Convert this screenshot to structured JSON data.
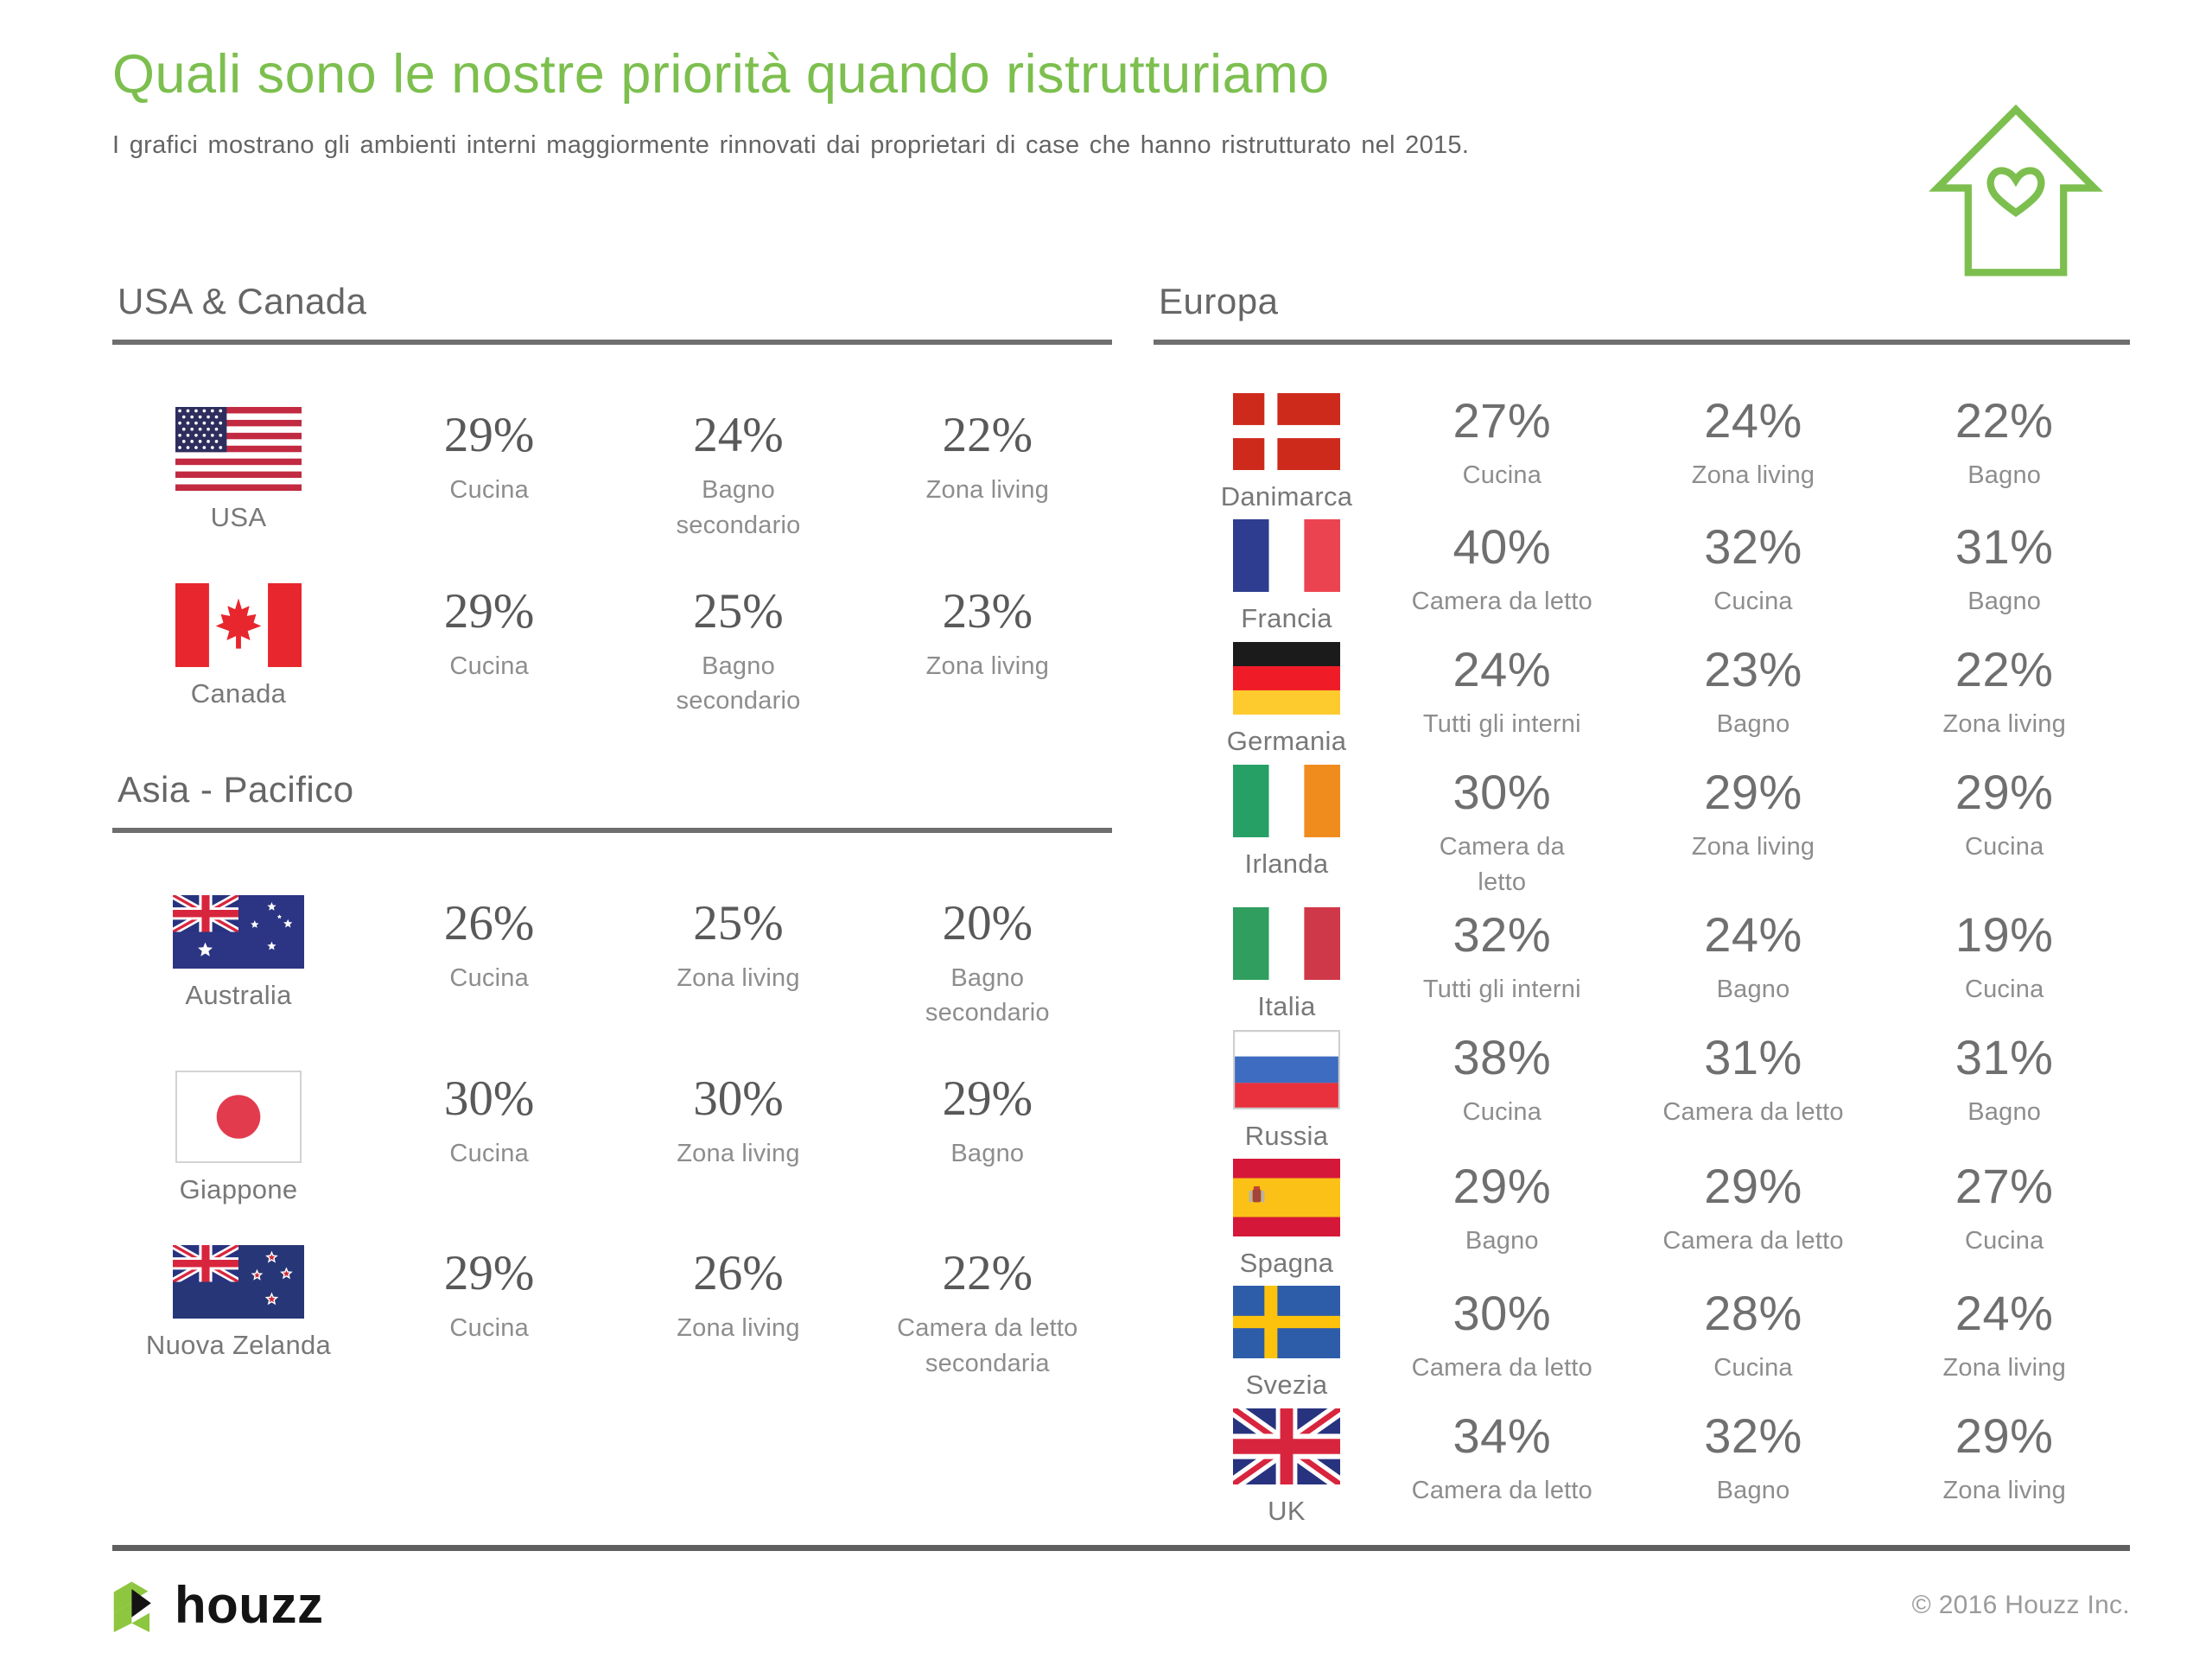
{
  "header": {
    "title": "Quali sono le nostre priorità quando ristrutturiamo",
    "subtitle": "I grafici mostrano gli ambienti interni maggiormente rinnovati dai proprietari di case che hanno ristrutturato nel 2015."
  },
  "colors": {
    "accent_green": "#7cbf4e",
    "divider_gray": "#6e6e6e",
    "percent_serif_gray": "#595959",
    "percent_sans_gray": "#6f6f6f",
    "label_gray": "#8d8d8d"
  },
  "icons": {
    "header_icon": "house-heart-icon",
    "footer_icon": "houzz-logo-icon"
  },
  "sections": {
    "usa_canada": {
      "title": "USA & Canada",
      "rows": [
        {
          "country": "USA",
          "flag": "usa",
          "stats": [
            {
              "value": "29%",
              "label": "Cucina"
            },
            {
              "value": "24%",
              "label": "Bagno\nsecondario"
            },
            {
              "value": "22%",
              "label": "Zona living"
            }
          ]
        },
        {
          "country": "Canada",
          "flag": "canada",
          "stats": [
            {
              "value": "29%",
              "label": "Cucina"
            },
            {
              "value": "25%",
              "label": "Bagno\nsecondario"
            },
            {
              "value": "23%",
              "label": "Zona living"
            }
          ]
        }
      ]
    },
    "asia_pacifico": {
      "title": "Asia - Pacifico",
      "rows": [
        {
          "country": "Australia",
          "flag": "australia",
          "stats": [
            {
              "value": "26%",
              "label": "Cucina"
            },
            {
              "value": "25%",
              "label": "Zona living"
            },
            {
              "value": "20%",
              "label": "Bagno\nsecondario"
            }
          ]
        },
        {
          "country": "Giappone",
          "flag": "japan",
          "stats": [
            {
              "value": "30%",
              "label": "Cucina"
            },
            {
              "value": "30%",
              "label": "Zona living"
            },
            {
              "value": "29%",
              "label": "Bagno"
            }
          ]
        },
        {
          "country": "Nuova Zelanda",
          "flag": "new-zealand",
          "stats": [
            {
              "value": "29%",
              "label": "Cucina"
            },
            {
              "value": "26%",
              "label": "Zona living"
            },
            {
              "value": "22%",
              "label": "Camera da letto\nsecondaria"
            }
          ]
        }
      ]
    },
    "europa": {
      "title": "Europa",
      "rows": [
        {
          "country": "Danimarca",
          "flag": "denmark",
          "stats": [
            {
              "value": "27%",
              "label": "Cucina"
            },
            {
              "value": "24%",
              "label": "Zona living"
            },
            {
              "value": "22%",
              "label": "Bagno"
            }
          ]
        },
        {
          "country": "Francia",
          "flag": "france",
          "stats": [
            {
              "value": "40%",
              "label": "Camera da letto"
            },
            {
              "value": "32%",
              "label": "Cucina"
            },
            {
              "value": "31%",
              "label": "Bagno"
            }
          ]
        },
        {
          "country": "Germania",
          "flag": "germany",
          "stats": [
            {
              "value": "24%",
              "label": "Tutti gli interni"
            },
            {
              "value": "23%",
              "label": "Bagno"
            },
            {
              "value": "22%",
              "label": "Zona living"
            }
          ]
        },
        {
          "country": "Irlanda",
          "flag": "ireland",
          "stats": [
            {
              "value": "30%",
              "label": "Camera da\nletto"
            },
            {
              "value": "29%",
              "label": "Zona living"
            },
            {
              "value": "29%",
              "label": "Cucina"
            }
          ]
        },
        {
          "country": "Italia",
          "flag": "italy",
          "stats": [
            {
              "value": "32%",
              "label": "Tutti gli interni"
            },
            {
              "value": "24%",
              "label": "Bagno"
            },
            {
              "value": "19%",
              "label": "Cucina"
            }
          ]
        },
        {
          "country": "Russia",
          "flag": "russia",
          "stats": [
            {
              "value": "38%",
              "label": "Cucina"
            },
            {
              "value": "31%",
              "label": "Camera da letto"
            },
            {
              "value": "31%",
              "label": "Bagno"
            }
          ]
        },
        {
          "country": "Spagna",
          "flag": "spain",
          "stats": [
            {
              "value": "29%",
              "label": "Bagno"
            },
            {
              "value": "29%",
              "label": "Camera da letto"
            },
            {
              "value": "27%",
              "label": "Cucina"
            }
          ]
        },
        {
          "country": "Svezia",
          "flag": "sweden",
          "stats": [
            {
              "value": "30%",
              "label": "Camera da letto"
            },
            {
              "value": "28%",
              "label": "Cucina"
            },
            {
              "value": "24%",
              "label": "Zona living"
            }
          ]
        },
        {
          "country": "UK",
          "flag": "uk",
          "stats": [
            {
              "value": "34%",
              "label": "Camera da letto"
            },
            {
              "value": "32%",
              "label": "Bagno"
            },
            {
              "value": "29%",
              "label": "Zona living"
            }
          ]
        }
      ]
    }
  },
  "chart_data": {
    "type": "table",
    "title": "Quali sono le nostre priorità quando ristrutturiamo",
    "subtitle": "Ambienti interni maggiormente rinnovati dai proprietari di case che hanno ristrutturato nel 2015",
    "unit": "%",
    "groups": [
      {
        "region": "USA & Canada",
        "rows": [
          {
            "country": "USA",
            "values": [
              {
                "room": "Cucina",
                "pct": 29
              },
              {
                "room": "Bagno secondario",
                "pct": 24
              },
              {
                "room": "Zona living",
                "pct": 22
              }
            ]
          },
          {
            "country": "Canada",
            "values": [
              {
                "room": "Cucina",
                "pct": 29
              },
              {
                "room": "Bagno secondario",
                "pct": 25
              },
              {
                "room": "Zona living",
                "pct": 23
              }
            ]
          }
        ]
      },
      {
        "region": "Asia - Pacifico",
        "rows": [
          {
            "country": "Australia",
            "values": [
              {
                "room": "Cucina",
                "pct": 26
              },
              {
                "room": "Zona living",
                "pct": 25
              },
              {
                "room": "Bagno secondario",
                "pct": 20
              }
            ]
          },
          {
            "country": "Giappone",
            "values": [
              {
                "room": "Cucina",
                "pct": 30
              },
              {
                "room": "Zona living",
                "pct": 30
              },
              {
                "room": "Bagno",
                "pct": 29
              }
            ]
          },
          {
            "country": "Nuova Zelanda",
            "values": [
              {
                "room": "Cucina",
                "pct": 29
              },
              {
                "room": "Zona living",
                "pct": 26
              },
              {
                "room": "Camera da letto secondaria",
                "pct": 22
              }
            ]
          }
        ]
      },
      {
        "region": "Europa",
        "rows": [
          {
            "country": "Danimarca",
            "values": [
              {
                "room": "Cucina",
                "pct": 27
              },
              {
                "room": "Zona living",
                "pct": 24
              },
              {
                "room": "Bagno",
                "pct": 22
              }
            ]
          },
          {
            "country": "Francia",
            "values": [
              {
                "room": "Camera da letto",
                "pct": 40
              },
              {
                "room": "Cucina",
                "pct": 32
              },
              {
                "room": "Bagno",
                "pct": 31
              }
            ]
          },
          {
            "country": "Germania",
            "values": [
              {
                "room": "Tutti gli interni",
                "pct": 24
              },
              {
                "room": "Bagno",
                "pct": 23
              },
              {
                "room": "Zona living",
                "pct": 22
              }
            ]
          },
          {
            "country": "Irlanda",
            "values": [
              {
                "room": "Camera da letto",
                "pct": 30
              },
              {
                "room": "Zona living",
                "pct": 29
              },
              {
                "room": "Cucina",
                "pct": 29
              }
            ]
          },
          {
            "country": "Italia",
            "values": [
              {
                "room": "Tutti gli interni",
                "pct": 32
              },
              {
                "room": "Bagno",
                "pct": 24
              },
              {
                "room": "Cucina",
                "pct": 19
              }
            ]
          },
          {
            "country": "Russia",
            "values": [
              {
                "room": "Cucina",
                "pct": 38
              },
              {
                "room": "Camera da letto",
                "pct": 31
              },
              {
                "room": "Bagno",
                "pct": 31
              }
            ]
          },
          {
            "country": "Spagna",
            "values": [
              {
                "room": "Bagno",
                "pct": 29
              },
              {
                "room": "Camera da letto",
                "pct": 29
              },
              {
                "room": "Cucina",
                "pct": 27
              }
            ]
          },
          {
            "country": "Svezia",
            "values": [
              {
                "room": "Camera da letto",
                "pct": 30
              },
              {
                "room": "Cucina",
                "pct": 28
              },
              {
                "room": "Zona living",
                "pct": 24
              }
            ]
          },
          {
            "country": "UK",
            "values": [
              {
                "room": "Camera da letto",
                "pct": 34
              },
              {
                "room": "Bagno",
                "pct": 32
              },
              {
                "room": "Zona living",
                "pct": 29
              }
            ]
          }
        ]
      }
    ]
  },
  "footer": {
    "brand": "houzz",
    "copyright": "© 2016 Houzz Inc."
  }
}
